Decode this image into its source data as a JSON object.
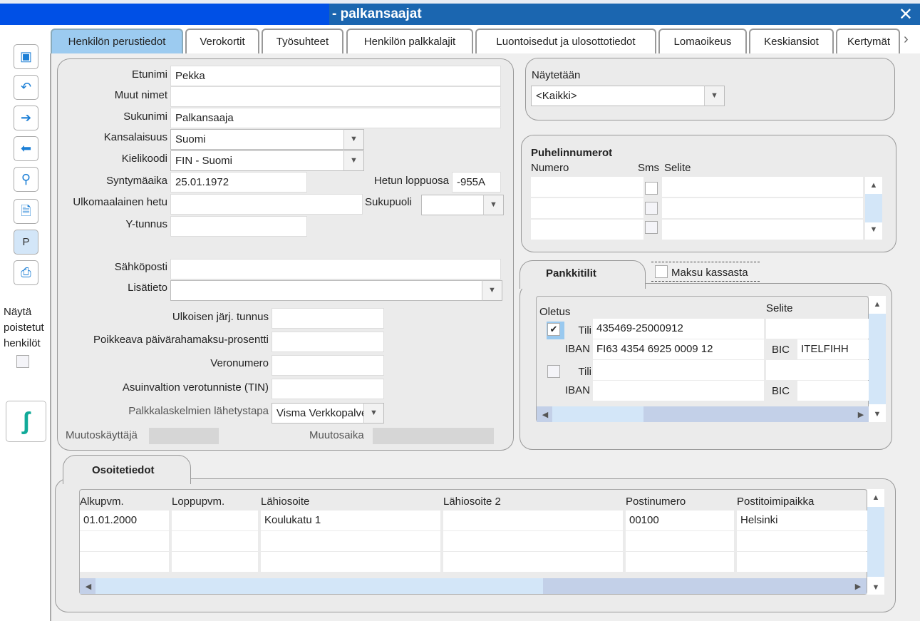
{
  "window": {
    "title": "- palkansaajat",
    "close": "✕"
  },
  "tabs": [
    "Henkilön perustiedot",
    "Verokortit",
    "Työsuhteet",
    "Henkilön palkkalajit",
    "Luontoisedut ja ulosottotiedot",
    "Lomaoikeus",
    "Keskiansiot",
    "Kertymät"
  ],
  "toolbar": {
    "p_label": "P",
    "show_deleted": "Näytä poistetut henkilöt"
  },
  "person": {
    "etunimi_label": "Etunimi",
    "etunimi": "Pekka",
    "muut_label": "Muut nimet",
    "muut": "",
    "sukunimi_label": "Sukunimi",
    "sukunimi": "Palkansaaja",
    "kansalaisuus_label": "Kansalaisuus",
    "kansalaisuus": "Suomi",
    "kielikoodi_label": "Kielikoodi",
    "kielikoodi": "FIN - Suomi",
    "syntymaaika_label": "Syntymäaika",
    "syntymaaika": "25.01.1972",
    "hetu_label": "Hetun loppuosa",
    "hetu": "-955A",
    "ulkohetu_label": "Ulkomaalainen hetu",
    "sukupuoli_label": "Sukupuoli",
    "ytunnus_label": "Y-tunnus",
    "sahkoposti_label": "Sähköposti",
    "lisatieto_label": "Lisätieto",
    "ulkoinen_label": "Ulkoisen järj. tunnus",
    "poikkeava_label": "Poikkeava päivärahamaksu-prosentti",
    "veronumero_label": "Veronumero",
    "tin_label": "Asuinvaltion verotunniste (TIN)",
    "lahetystapa_label": "Palkkalaskelmien lähetystapa",
    "lahetystapa": "Visma Verkkopalvelu",
    "muutoskayttaja_label": "Muutoskäyttäjä",
    "muutosaika_label": "Muutosaika"
  },
  "naytetaan": {
    "label": "Näytetään",
    "value": "<Kaikki>"
  },
  "phones": {
    "title": "Puhelinnumerot",
    "col_numero": "Numero",
    "col_sms": "Sms",
    "col_selite": "Selite"
  },
  "bank": {
    "tab": "Pankkitilit",
    "maksu_kassasta": "Maksu kassasta",
    "oletus": "Oletus",
    "selite": "Selite",
    "tili": "Tili",
    "iban": "IBAN",
    "bic": "BIC",
    "accounts": [
      {
        "default": true,
        "tili": "435469-25000912",
        "iban": "FI63 4354 6925 0009 12",
        "bic": "ITELFIHH",
        "selite": ""
      },
      {
        "default": false,
        "tili": "",
        "iban": "",
        "bic": "",
        "selite": ""
      }
    ]
  },
  "address": {
    "tab": "Osoitetiedot",
    "columns": [
      "Alkupvm.",
      "Loppupvm.",
      "Lähiosoite",
      "Lähiosoite 2",
      "Postinumero",
      "Postitoimipaikka"
    ],
    "rows": [
      [
        "01.01.2000",
        "",
        "Koulukatu 1",
        "",
        "00100",
        "Helsinki"
      ]
    ]
  },
  "colors": {
    "titlebar": "#1b66b0",
    "selected": "#99c9ef",
    "active_tab": "#9ccbf0"
  }
}
